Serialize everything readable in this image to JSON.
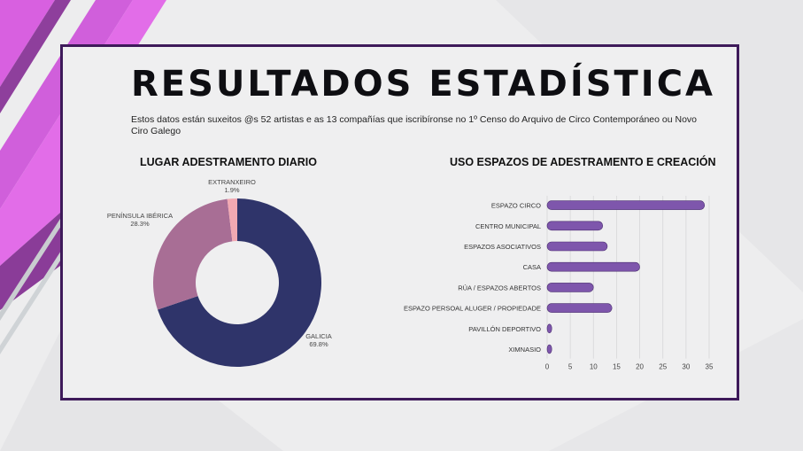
{
  "slide": {
    "title": "RESULTADOS  ESTADÍSTICA",
    "subtitle": "Estos datos están suxeitos @s 52 artistas e as 13 compañías que  iscribíronse no 1º Censo do Arquivo de Circo Contemporáneo ou Novo Ciro Galego"
  },
  "colors": {
    "accent_pink": "#d860e0",
    "accent_purple": "#8a3c98",
    "frame": "#3e1a5a",
    "bar": "#7e56ac",
    "donut_galicia": "#2f346a",
    "donut_peninsula": "#a86e95",
    "donut_extranxeiro": "#f2a9b2"
  },
  "chart_data": [
    {
      "type": "pie",
      "style": "donut",
      "title": "LUGAR ADESTRAMENTO DIARIO",
      "slices": [
        {
          "label": "GALICIA",
          "value": 69.8,
          "value_label": "69.8%",
          "color": "#2f346a"
        },
        {
          "label": "PENÍNSULA IBÉRICA",
          "value": 28.3,
          "value_label": "28.3%",
          "color": "#a86e95"
        },
        {
          "label": "EXTRANXEIRO",
          "value": 1.9,
          "value_label": "1.9%",
          "color": "#f2a9b2"
        }
      ]
    },
    {
      "type": "bar",
      "orientation": "horizontal",
      "title": "USO ESPAZOS DE ADESTRAMENTO E CREACIÓN",
      "categories": [
        "ESPAZO CIRCO",
        "CENTRO MUNICIPAL",
        "ESPAZOS ASOCIATIVOS",
        "CASA",
        "RÚA / ESPAZOS ABERTOS",
        "ESPAZO PERSOAL ALUGER / PROPIEDADE",
        "PAVILLÓN DEPORTIVO",
        "XIMNASIO"
      ],
      "values": [
        34,
        12,
        13,
        20,
        10,
        14,
        1,
        1
      ],
      "xlim": [
        0,
        35
      ],
      "xticks": [
        0,
        5,
        10,
        15,
        20,
        25,
        30,
        35
      ],
      "grid": true
    }
  ]
}
